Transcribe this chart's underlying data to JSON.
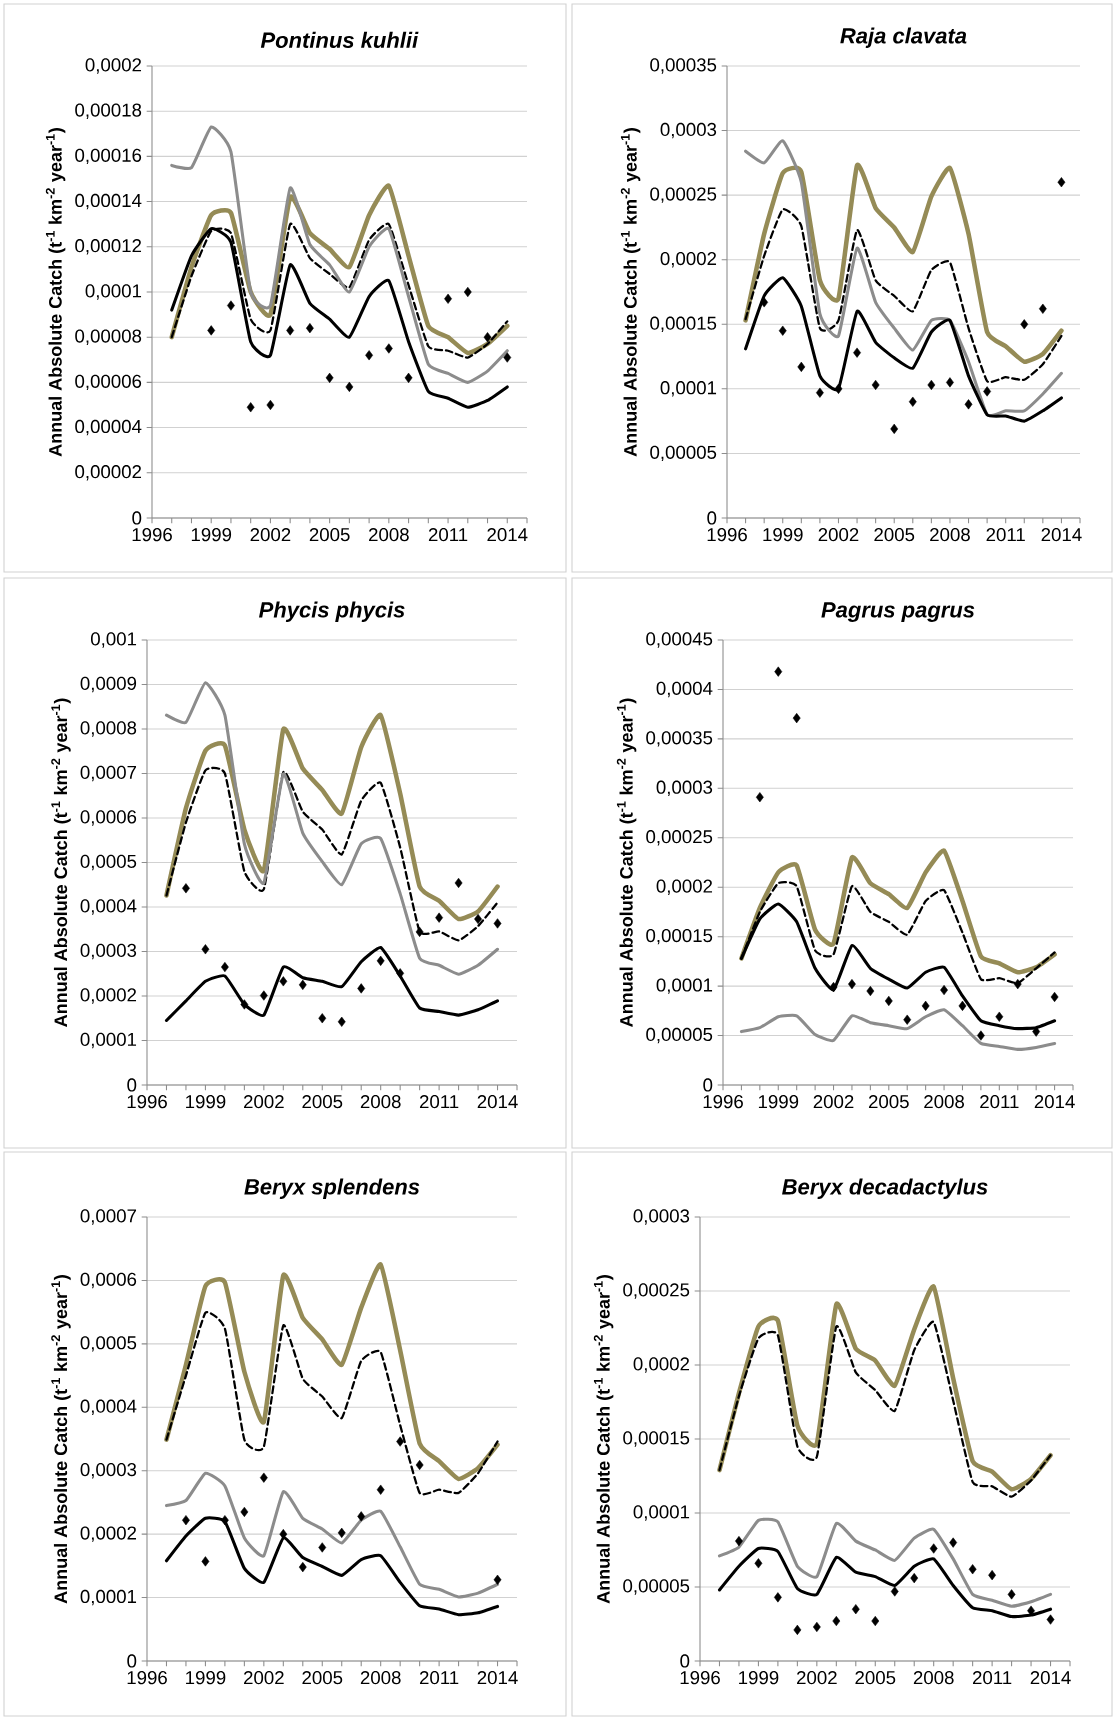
{
  "chart_data": [
    {
      "type": "line",
      "title": "*Pontinus kuhlii*",
      "ylabel": "Annual Absolute Catch (t$^{-1}$ km$^{-2}$ year$^{-1}$)",
      "grid": "y",
      "x": [
        1997,
        1998,
        1999,
        2000,
        2001,
        2002,
        2003,
        2004,
        2005,
        2006,
        2007,
        2008,
        2009,
        2010,
        2011,
        2012,
        2013,
        2014
      ],
      "xlim": [
        1996,
        2015
      ],
      "xticks": [
        1996,
        {
          "value": 1997,
          "label": null
        },
        {
          "value": 1998,
          "label": null
        },
        1999,
        {
          "value": 2000,
          "label": null
        },
        {
          "value": 2001,
          "label": null
        },
        2002,
        {
          "value": 2003,
          "label": null
        },
        {
          "value": 2004,
          "label": null
        },
        2005,
        {
          "value": 2006,
          "label": null
        },
        {
          "value": 2007,
          "label": null
        },
        2008,
        {
          "value": 2009,
          "label": null
        },
        {
          "value": 2010,
          "label": null
        },
        2011,
        {
          "value": 2012,
          "label": null
        },
        {
          "value": 2013,
          "label": null
        },
        2014,
        {
          "value": 2015,
          "label": null
        }
      ],
      "ylim": [
        0,
        0.0002
      ],
      "yticks": [
        0,
        {
          "value": 2e-05,
          "label": "0,00002"
        },
        {
          "value": 4e-05,
          "label": "0,00004"
        },
        {
          "value": 6e-05,
          "label": "0,00006"
        },
        {
          "value": 8e-05,
          "label": "0,00008"
        },
        {
          "value": 0.0001,
          "label": "0,0001"
        },
        {
          "value": 0.00012,
          "label": "0,00012"
        },
        {
          "value": 0.00014,
          "label": "0,00014"
        },
        {
          "value": 0.00016,
          "label": "0,00016"
        },
        {
          "value": 0.00018,
          "label": "0,00018"
        },
        {
          "value": 0.0002,
          "label": "0,0002"
        }
      ],
      "series": [
        {
          "line_style": "solid",
          "color": "#958b56",
          "values": [
            8e-05,
            0.000111,
            0.000134,
            0.000135,
            0.0001,
            9e-05,
            0.000142,
            0.000126,
            0.000119,
            0.000111,
            0.000134,
            0.000147,
            0.000116,
            8.5e-05,
            8e-05,
            7.3e-05,
            7.7e-05,
            8.5e-05
          ]
        },
        {
          "line_style": "dashed",
          "color": "#000000",
          "values": [
            8e-05,
            0.000107,
            0.000127,
            0.000126,
            8.8e-05,
            8.3e-05,
            0.00013,
            0.000115,
            0.000108,
            0.000102,
            0.000123,
            0.00013,
            0.000103,
            7.6e-05,
            7.4e-05,
            7.1e-05,
            7.7e-05,
            8.7e-05
          ]
        },
        {
          "line_style": "solid",
          "color": "#8c8c8c",
          "values": [
            0.000156,
            0.000155,
            0.000173,
            0.000162,
            0.0001,
            9.4e-05,
            0.000146,
            0.000121,
            0.000112,
            0.0001,
            0.00012,
            0.000128,
            9.8e-05,
            6.8e-05,
            6.4e-05,
            6e-05,
            6.5e-05,
            7.4e-05
          ]
        },
        {
          "line_style": "solid",
          "color": "#000000",
          "values": [
            9.2e-05,
            0.000116,
            0.000128,
            0.000122,
            7.8e-05,
            7.2e-05,
            0.000112,
            9.5e-05,
            8.8e-05,
            8e-05,
            9.8e-05,
            0.000105,
            7.8e-05,
            5.6e-05,
            5.3e-05,
            4.9e-05,
            5.2e-05,
            5.8e-05
          ]
        },
        {
          "type": "scatter",
          "marker": "diamond",
          "color": "#000000",
          "values": [
            null,
            null,
            8.3e-05,
            9.4e-05,
            4.9e-05,
            5e-05,
            8.3e-05,
            8.4e-05,
            6.2e-05,
            5.8e-05,
            7.2e-05,
            7.5e-05,
            6.2e-05,
            null,
            9.7e-05,
            0.0001,
            8e-05,
            7.1e-05
          ]
        }
      ]
    },
    {
      "type": "line",
      "title": "*Raja clavata*",
      "ylabel": "Annual Absolute Catch (t$^{-1}$ km$^{-2}$ year$^{-1}$)",
      "grid": "y",
      "x": [
        1997,
        1998,
        1999,
        2000,
        2001,
        2002,
        2003,
        2004,
        2005,
        2006,
        2007,
        2008,
        2009,
        2010,
        2011,
        2012,
        2013,
        2014
      ],
      "xlim": [
        1996,
        2015
      ],
      "xticks": [
        1996,
        {
          "value": 1997,
          "label": null
        },
        {
          "value": 1998,
          "label": null
        },
        1999,
        {
          "value": 2000,
          "label": null
        },
        {
          "value": 2001,
          "label": null
        },
        2002,
        {
          "value": 2003,
          "label": null
        },
        {
          "value": 2004,
          "label": null
        },
        2005,
        {
          "value": 2006,
          "label": null
        },
        {
          "value": 2007,
          "label": null
        },
        2008,
        {
          "value": 2009,
          "label": null
        },
        {
          "value": 2010,
          "label": null
        },
        2011,
        {
          "value": 2012,
          "label": null
        },
        {
          "value": 2013,
          "label": null
        },
        2014,
        {
          "value": 2015,
          "label": null
        }
      ],
      "ylim": [
        0,
        0.00035
      ],
      "yticks": [
        0,
        {
          "value": 5e-05,
          "label": "0,00005"
        },
        {
          "value": 0.0001,
          "label": "0,0001"
        },
        {
          "value": 0.00015,
          "label": "0,00015"
        },
        {
          "value": 0.0002,
          "label": "0,0002"
        },
        {
          "value": 0.00025,
          "label": "0,00025"
        },
        {
          "value": 0.0003,
          "label": "0,0003"
        },
        {
          "value": 0.00035,
          "label": "0,00035"
        }
      ],
      "series": [
        {
          "line_style": "solid",
          "color": "#958b56",
          "values": [
            0.000153,
            0.00022,
            0.000267,
            0.000268,
            0.000184,
            0.00017,
            0.000273,
            0.00024,
            0.000225,
            0.000206,
            0.000249,
            0.000271,
            0.00022,
            0.000144,
            0.000133,
            0.000121,
            0.000127,
            0.000145
          ]
        },
        {
          "line_style": "dashed",
          "color": "#000000",
          "values": [
            0.000154,
            0.000203,
            0.000239,
            0.000226,
            0.000147,
            0.000153,
            0.000223,
            0.000184,
            0.000172,
            0.00016,
            0.000192,
            0.000198,
            0.000147,
            0.000106,
            0.000109,
            0.000107,
            0.000119,
            0.000141
          ]
        },
        {
          "line_style": "solid",
          "color": "#8c8c8c",
          "values": [
            0.000284,
            0.000275,
            0.000292,
            0.00026,
            0.000158,
            0.000141,
            0.000209,
            0.000167,
            0.000147,
            0.00013,
            0.000153,
            0.000153,
            0.000121,
            8e-05,
            8.3e-05,
            8.3e-05,
            9.6e-05,
            0.000112
          ]
        },
        {
          "line_style": "solid",
          "color": "#000000",
          "values": [
            0.000131,
            0.000172,
            0.000186,
            0.000164,
            0.00011,
            0.0001,
            0.00016,
            0.000136,
            0.000124,
            0.000116,
            0.000144,
            0.000153,
            0.00011,
            8e-05,
            7.9e-05,
            7.5e-05,
            8.3e-05,
            9.3e-05
          ]
        },
        {
          "type": "scatter",
          "marker": "diamond",
          "color": "#000000",
          "values": [
            null,
            0.000167,
            0.000145,
            0.000117,
            9.7e-05,
            0.0001,
            0.000128,
            0.000103,
            6.9e-05,
            9e-05,
            0.000103,
            0.000105,
            8.8e-05,
            9.8e-05,
            null,
            0.00015,
            0.000162,
            0.00026
          ]
        }
      ]
    },
    {
      "type": "line",
      "title": "*Phycis phycis*",
      "ylabel": "Annual Absolute Catch (t$^{-1}$ km$^{-2}$ year$^{-1}$)",
      "grid": "y",
      "x": [
        1997,
        1998,
        1999,
        2000,
        2001,
        2002,
        2003,
        2004,
        2005,
        2006,
        2007,
        2008,
        2009,
        2010,
        2011,
        2012,
        2013,
        2014
      ],
      "xlim": [
        1996,
        2015
      ],
      "xticks": [
        1996,
        {
          "value": 1997,
          "label": null
        },
        {
          "value": 1998,
          "label": null
        },
        1999,
        {
          "value": 2000,
          "label": null
        },
        {
          "value": 2001,
          "label": null
        },
        2002,
        {
          "value": 2003,
          "label": null
        },
        {
          "value": 2004,
          "label": null
        },
        2005,
        {
          "value": 2006,
          "label": null
        },
        {
          "value": 2007,
          "label": null
        },
        2008,
        {
          "value": 2009,
          "label": null
        },
        {
          "value": 2010,
          "label": null
        },
        2011,
        {
          "value": 2012,
          "label": null
        },
        {
          "value": 2013,
          "label": null
        },
        2014,
        {
          "value": 2015,
          "label": null
        }
      ],
      "ylim": [
        0,
        0.001
      ],
      "yticks": [
        0,
        {
          "value": 0.0001,
          "label": "0,0001"
        },
        {
          "value": 0.0002,
          "label": "0,0002"
        },
        {
          "value": 0.0003,
          "label": "0,0003"
        },
        {
          "value": 0.0004,
          "label": "0,0004"
        },
        {
          "value": 0.0005,
          "label": "0,0005"
        },
        {
          "value": 0.0006,
          "label": "0,0006"
        },
        {
          "value": 0.0007,
          "label": "0,0007"
        },
        {
          "value": 0.0008,
          "label": "0,0008"
        },
        {
          "value": 0.0009,
          "label": "0,0009"
        },
        {
          "value": 0.001,
          "label": "0,001"
        }
      ],
      "series": [
        {
          "line_style": "solid",
          "color": "#958b56",
          "values": [
            0.000426,
            0.000622,
            0.000751,
            0.000763,
            0.000574,
            0.000482,
            0.000799,
            0.000711,
            0.000663,
            0.00061,
            0.000759,
            0.000831,
            0.000655,
            0.000446,
            0.000414,
            0.000373,
            0.00039,
            0.000446
          ]
        },
        {
          "line_style": "dashed",
          "color": "#000000",
          "values": [
            0.000426,
            0.00059,
            0.000707,
            0.0007,
            0.00048,
            0.00044,
            0.000703,
            0.000614,
            0.000574,
            0.000518,
            0.000639,
            0.000679,
            0.000534,
            0.000345,
            0.000345,
            0.000325,
            0.000357,
            0.00041
          ]
        },
        {
          "line_style": "solid",
          "color": "#8c8c8c",
          "values": [
            0.000831,
            0.000815,
            0.000904,
            0.000831,
            0.000542,
            0.000454,
            0.000699,
            0.000566,
            0.000502,
            0.00045,
            0.000542,
            0.000554,
            0.00043,
            0.000285,
            0.000269,
            0.000249,
            0.000269,
            0.000305
          ]
        },
        {
          "line_style": "solid",
          "color": "#000000",
          "values": [
            0.000145,
            0.000189,
            0.000233,
            0.000245,
            0.000181,
            0.000157,
            0.000265,
            0.000241,
            0.000233,
            0.000221,
            0.000277,
            0.000309,
            0.000245,
            0.000173,
            0.000165,
            0.000157,
            0.000169,
            0.000189
          ]
        },
        {
          "type": "scatter",
          "marker": "diamond",
          "color": "#000000",
          "values": [
            null,
            0.000442,
            0.000305,
            0.000265,
            0.000181,
            0.000201,
            0.000233,
            0.000225,
            0.00015,
            0.000142,
            0.000217,
            0.000279,
            0.000251,
            0.000344,
            0.000376,
            0.000454,
            0.000373,
            0.000363
          ]
        }
      ]
    },
    {
      "type": "line",
      "title": "*Pagrus pagrus*",
      "ylabel": "Annual Absolute Catch (t$^{-1}$ km$^{-2}$ year$^{-1}$)",
      "grid": "y",
      "x": [
        1997,
        1998,
        1999,
        2000,
        2001,
        2002,
        2003,
        2004,
        2005,
        2006,
        2007,
        2008,
        2009,
        2010,
        2011,
        2012,
        2013,
        2014
      ],
      "xlim": [
        1996,
        2015
      ],
      "xticks": [
        1996,
        {
          "value": 1997,
          "label": null
        },
        {
          "value": 1998,
          "label": null
        },
        1999,
        {
          "value": 2000,
          "label": null
        },
        {
          "value": 2001,
          "label": null
        },
        2002,
        {
          "value": 2003,
          "label": null
        },
        {
          "value": 2004,
          "label": null
        },
        2005,
        {
          "value": 2006,
          "label": null
        },
        {
          "value": 2007,
          "label": null
        },
        2008,
        {
          "value": 2009,
          "label": null
        },
        {
          "value": 2010,
          "label": null
        },
        2011,
        {
          "value": 2012,
          "label": null
        },
        {
          "value": 2013,
          "label": null
        },
        2014,
        {
          "value": 2015,
          "label": null
        }
      ],
      "ylim": [
        0,
        0.00045
      ],
      "yticks": [
        0,
        {
          "value": 5e-05,
          "label": "0,00005"
        },
        {
          "value": 0.0001,
          "label": "0,0001"
        },
        {
          "value": 0.00015,
          "label": "0,00015"
        },
        {
          "value": 0.0002,
          "label": "0,0002"
        },
        {
          "value": 0.00025,
          "label": "0,00025"
        },
        {
          "value": 0.0003,
          "label": "0,0003"
        },
        {
          "value": 0.00035,
          "label": "0,00035"
        },
        {
          "value": 0.0004,
          "label": "0,0004"
        },
        {
          "value": 0.00045,
          "label": "0,00045"
        }
      ],
      "series": [
        {
          "line_style": "solid",
          "color": "#958b56",
          "values": [
            0.000128,
            0.000179,
            0.000215,
            0.000222,
            0.000157,
            0.000143,
            0.00023,
            0.000204,
            0.000193,
            0.000179,
            0.000215,
            0.000237,
            0.000186,
            0.00013,
            0.000123,
            0.000114,
            0.000119,
            0.000132
          ]
        },
        {
          "line_style": "dashed",
          "color": "#000000",
          "values": [
            0.000128,
            0.000175,
            0.000204,
            0.000201,
            0.000136,
            0.000132,
            0.000201,
            0.000175,
            0.000165,
            0.000152,
            0.000186,
            0.000197,
            0.000154,
            0.000107,
            0.000108,
            0.000103,
            0.000118,
            0.000134
          ]
        },
        {
          "line_style": "solid",
          "color": "#8c8c8c",
          "values": [
            5.4e-05,
            5.8e-05,
            6.9e-05,
            7e-05,
            5.1e-05,
            4.5e-05,
            7e-05,
            6.3e-05,
            6e-05,
            5.7e-05,
            6.9e-05,
            7.6e-05,
            6e-05,
            4.2e-05,
            3.9e-05,
            3.6e-05,
            3.8e-05,
            4.2e-05
          ]
        },
        {
          "line_style": "solid",
          "color": "#000000",
          "values": [
            0.000128,
            0.000168,
            0.000183,
            0.000165,
            0.000118,
            9.6e-05,
            0.000141,
            0.000118,
            0.000107,
            9.8e-05,
            0.000114,
            0.000119,
            9e-05,
            6.5e-05,
            6e-05,
            5.7e-05,
            5.8e-05,
            6.5e-05
          ]
        },
        {
          "type": "scatter",
          "marker": "diamond",
          "color": "#000000",
          "values": [
            null,
            0.000291,
            0.000418,
            0.000371,
            null,
            9.9e-05,
            0.000102,
            9.5e-05,
            8.5e-05,
            6.6e-05,
            8e-05,
            9.6e-05,
            8e-05,
            5e-05,
            6.9e-05,
            0.000102,
            5.4e-05,
            8.9e-05
          ]
        }
      ]
    },
    {
      "type": "line",
      "title": "*Beryx splendens*",
      "ylabel": "Annual Absolute Catch (t$^{-1}$ km$^{-2}$ year$^{-1}$)",
      "grid": "y",
      "x": [
        1997,
        1998,
        1999,
        2000,
        2001,
        2002,
        2003,
        2004,
        2005,
        2006,
        2007,
        2008,
        2009,
        2010,
        2011,
        2012,
        2013,
        2014
      ],
      "xlim": [
        1996,
        2015
      ],
      "xticks": [
        1996,
        {
          "value": 1997,
          "label": null
        },
        {
          "value": 1998,
          "label": null
        },
        1999,
        {
          "value": 2000,
          "label": null
        },
        {
          "value": 2001,
          "label": null
        },
        2002,
        {
          "value": 2003,
          "label": null
        },
        {
          "value": 2004,
          "label": null
        },
        2005,
        {
          "value": 2006,
          "label": null
        },
        {
          "value": 2007,
          "label": null
        },
        2008,
        {
          "value": 2009,
          "label": null
        },
        {
          "value": 2010,
          "label": null
        },
        2011,
        {
          "value": 2012,
          "label": null
        },
        {
          "value": 2013,
          "label": null
        },
        2014,
        {
          "value": 2015,
          "label": null
        }
      ],
      "ylim": [
        0,
        0.0007
      ],
      "yticks": [
        0,
        {
          "value": 0.0001,
          "label": "0,0001"
        },
        {
          "value": 0.0002,
          "label": "0,0002"
        },
        {
          "value": 0.0003,
          "label": "0,0003"
        },
        {
          "value": 0.0004,
          "label": "0,0004"
        },
        {
          "value": 0.0005,
          "label": "0,0005"
        },
        {
          "value": 0.0006,
          "label": "0,0006"
        },
        {
          "value": 0.0007,
          "label": "0,0007"
        }
      ],
      "series": [
        {
          "line_style": "solid",
          "color": "#958b56",
          "values": [
            0.000349,
            0.000467,
            0.000591,
            0.000597,
            0.000456,
            0.000377,
            0.000608,
            0.000541,
            0.000507,
            0.000467,
            0.000557,
            0.000625,
            0.00049,
            0.000343,
            0.000315,
            0.000287,
            0.000304,
            0.000341
          ]
        },
        {
          "line_style": "dashed",
          "color": "#000000",
          "values": [
            0.000349,
            0.00045,
            0.000549,
            0.000524,
            0.000349,
            0.000338,
            0.000529,
            0.000445,
            0.000417,
            0.000383,
            0.000473,
            0.000487,
            0.000372,
            0.000265,
            0.00027,
            0.000265,
            0.000296,
            0.000346
          ]
        },
        {
          "line_style": "solid",
          "color": "#8c8c8c",
          "values": [
            0.000245,
            0.000253,
            0.000296,
            0.000276,
            0.000194,
            0.000166,
            0.000267,
            0.000225,
            0.000208,
            0.000186,
            0.000222,
            0.000236,
            0.00018,
            0.000121,
            0.000113,
            0.000101,
            0.000107,
            0.000121
          ]
        },
        {
          "line_style": "solid",
          "color": "#000000",
          "values": [
            0.000158,
            0.000197,
            0.000225,
            0.00022,
            0.000146,
            0.000124,
            0.000194,
            0.000163,
            0.000149,
            0.000135,
            0.00016,
            0.000166,
            0.000124,
            8.7e-05,
            8.2e-05,
            7.3e-05,
            7.6e-05,
            8.6e-05
          ]
        },
        {
          "type": "scatter",
          "marker": "diamond",
          "color": "#000000",
          "values": [
            null,
            0.000222,
            0.000157,
            0.000222,
            0.000235,
            0.000289,
            0.0002,
            0.000148,
            0.000179,
            0.000202,
            0.000228,
            0.00027,
            0.000346,
            0.000309,
            null,
            null,
            null,
            0.000128
          ]
        }
      ]
    },
    {
      "type": "line",
      "title": "*Beryx decadactylus*",
      "ylabel": "Annual Absolute Catch (t$^{-1}$ km$^{-2}$ year$^{-1}$)",
      "grid": "y",
      "x": [
        1997,
        1998,
        1999,
        2000,
        2001,
        2002,
        2003,
        2004,
        2005,
        2006,
        2007,
        2008,
        2009,
        2010,
        2011,
        2012,
        2013,
        2014
      ],
      "xlim": [
        1996,
        2015
      ],
      "xticks": [
        1996,
        {
          "value": 1997,
          "label": null
        },
        {
          "value": 1998,
          "label": null
        },
        1999,
        {
          "value": 2000,
          "label": null
        },
        {
          "value": 2001,
          "label": null
        },
        2002,
        {
          "value": 2003,
          "label": null
        },
        {
          "value": 2004,
          "label": null
        },
        2005,
        {
          "value": 2006,
          "label": null
        },
        {
          "value": 2007,
          "label": null
        },
        2008,
        {
          "value": 2009,
          "label": null
        },
        {
          "value": 2010,
          "label": null
        },
        2011,
        {
          "value": 2012,
          "label": null
        },
        {
          "value": 2013,
          "label": null
        },
        2014,
        {
          "value": 2015,
          "label": null
        }
      ],
      "ylim": [
        0,
        0.0003
      ],
      "yticks": [
        0,
        {
          "value": 5e-05,
          "label": "0,00005"
        },
        {
          "value": 0.0001,
          "label": "0,0001"
        },
        {
          "value": 0.00015,
          "label": "0,00015"
        },
        {
          "value": 0.0002,
          "label": "0,0002"
        },
        {
          "value": 0.00025,
          "label": "0,00025"
        },
        {
          "value": 0.0003,
          "label": "0,0003"
        }
      ],
      "series": [
        {
          "line_style": "solid",
          "color": "#958b56",
          "values": [
            0.000129,
            0.000181,
            0.000226,
            0.00023,
            0.000159,
            0.000147,
            0.000241,
            0.000211,
            0.000203,
            0.000186,
            0.000224,
            0.000253,
            0.000191,
            0.000135,
            0.000128,
            0.000116,
            0.000123,
            0.000139
          ]
        },
        {
          "line_style": "dashed",
          "color": "#000000",
          "values": [
            0.000129,
            0.000179,
            0.000218,
            0.00022,
            0.000145,
            0.000138,
            0.000226,
            0.000195,
            0.000183,
            0.000169,
            0.00021,
            0.000229,
            0.000176,
            0.000121,
            0.000118,
            0.000111,
            0.000122,
            0.000139
          ]
        },
        {
          "line_style": "solid",
          "color": "#8c8c8c",
          "values": [
            7.1e-05,
            7.7e-05,
            9.5e-05,
            9.4e-05,
            6.4e-05,
            5.7e-05,
            9.3e-05,
            8.1e-05,
            7.5e-05,
            6.8e-05,
            8.3e-05,
            8.9e-05,
            6.9e-05,
            4.5e-05,
            4.1e-05,
            3.7e-05,
            4e-05,
            4.5e-05
          ]
        },
        {
          "line_style": "solid",
          "color": "#000000",
          "values": [
            4.8e-05,
            6.4e-05,
            7.6e-05,
            7.4e-05,
            4.9e-05,
            4.5e-05,
            7e-05,
            6e-05,
            5.7e-05,
            5.1e-05,
            6.4e-05,
            6.9e-05,
            5.1e-05,
            3.6e-05,
            3.4e-05,
            3e-05,
            3.1e-05,
            3.5e-05
          ]
        },
        {
          "type": "scatter",
          "marker": "diamond",
          "color": "#000000",
          "values": [
            null,
            8.1e-05,
            6.6e-05,
            4.3e-05,
            2.1e-05,
            2.3e-05,
            2.7e-05,
            3.5e-05,
            2.7e-05,
            4.7e-05,
            5.6e-05,
            7.6e-05,
            8e-05,
            6.2e-05,
            5.8e-05,
            4.5e-05,
            3.4e-05,
            2.8e-05
          ]
        }
      ]
    }
  ]
}
